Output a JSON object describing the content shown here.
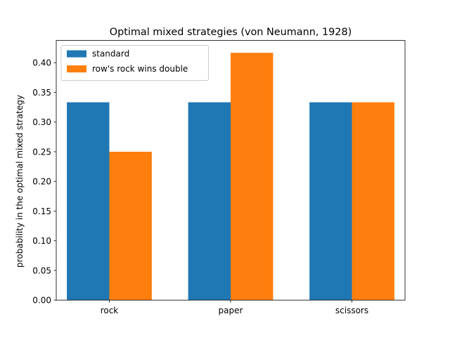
{
  "chart_data": {
    "type": "bar",
    "title": "Optimal mixed strategies (von Neumann, 1928)",
    "xlabel": "",
    "ylabel": "probability in the optimal mixed strategy",
    "categories": [
      "rock",
      "paper",
      "scissors"
    ],
    "series": [
      {
        "name": "standard",
        "values": [
          0.3333,
          0.3333,
          0.3333
        ],
        "color": "#1f77b4"
      },
      {
        "name": "row's rock wins double",
        "values": [
          0.25,
          0.4167,
          0.3333
        ],
        "color": "#ff7f0e"
      }
    ],
    "ylim": [
      0,
      0.4375
    ],
    "yticks": [
      "0.00",
      "0.05",
      "0.10",
      "0.15",
      "0.20",
      "0.25",
      "0.30",
      "0.35",
      "0.40"
    ],
    "grid": false,
    "legend_position": "top-left"
  }
}
